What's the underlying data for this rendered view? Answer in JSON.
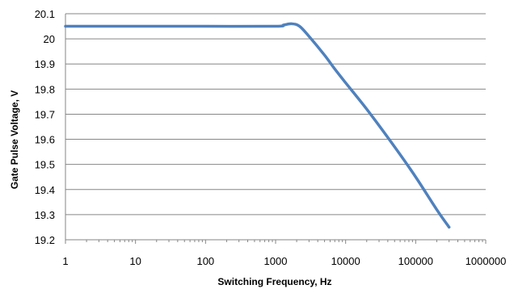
{
  "chart_data": {
    "type": "line",
    "title": "",
    "xlabel": "Switching Frequency, Hz",
    "ylabel": "Gate Pulse Voltage, V",
    "x_scale": "log",
    "xlim": [
      1,
      1000000
    ],
    "ylim": [
      19.2,
      20.1
    ],
    "x_ticks": [
      1,
      10,
      100,
      1000,
      10000,
      100000,
      1000000
    ],
    "x_tick_labels": [
      "1",
      "10",
      "100",
      "1000",
      "10000",
      "100000",
      "1000000"
    ],
    "y_ticks": [
      19.2,
      19.3,
      19.4,
      19.5,
      19.6,
      19.7,
      19.8,
      19.9,
      20,
      20.1
    ],
    "y_tick_labels": [
      "19.2",
      "19.3",
      "19.4",
      "19.5",
      "19.6",
      "19.7",
      "19.8",
      "19.9",
      "20",
      "20.1"
    ],
    "grid": "horizontal major",
    "legend": "none",
    "series": [
      {
        "color": "#4f81bd",
        "x": [
          1,
          10,
          100,
          1000,
          1300,
          1700,
          2200,
          3000,
          5000,
          7000,
          10000,
          20000,
          50000,
          100000,
          200000,
          300000
        ],
        "y": [
          20.05,
          20.05,
          20.05,
          20.05,
          20.055,
          20.06,
          20.05,
          20.01,
          19.935,
          19.88,
          19.825,
          19.72,
          19.57,
          19.45,
          19.32,
          19.25
        ]
      }
    ]
  }
}
